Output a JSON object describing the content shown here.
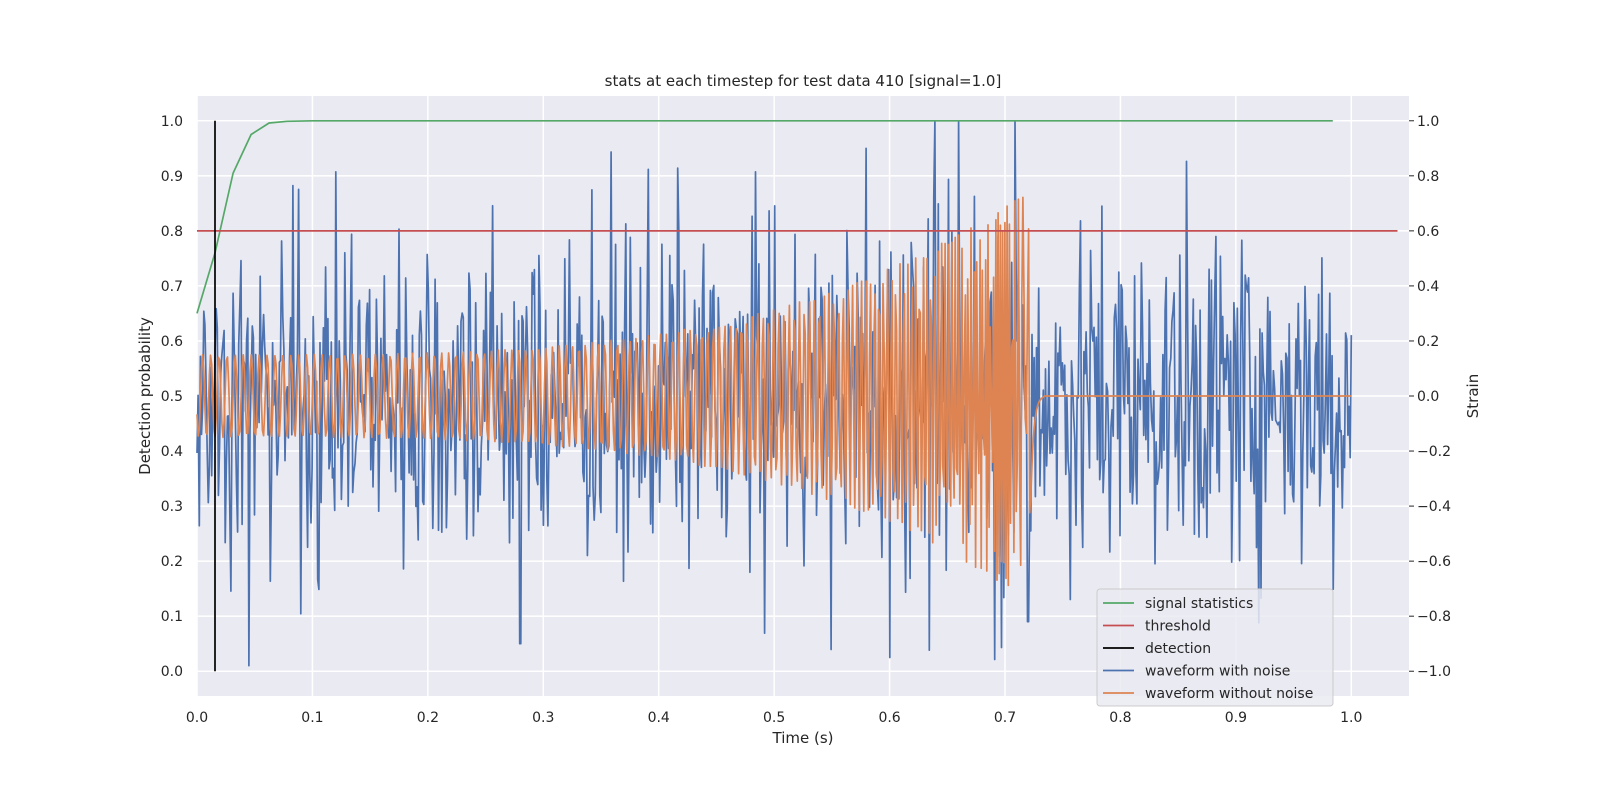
{
  "chart_data": {
    "type": "line",
    "title": "stats at each timestep for test data 410 [signal=1.0]",
    "xlabel": "Time (s)",
    "ylabel": "Detection probability",
    "y2label": "Strain",
    "xlim": [
      0.0,
      1.05
    ],
    "ylim": [
      -0.045,
      1.045
    ],
    "y2lim": [
      -1.09,
      1.09
    ],
    "xticks": [
      "0.0",
      "0.1",
      "0.2",
      "0.3",
      "0.4",
      "0.5",
      "0.6",
      "0.7",
      "0.8",
      "0.9",
      "1.0"
    ],
    "yticks": [
      "0.0",
      "0.1",
      "0.2",
      "0.3",
      "0.4",
      "0.5",
      "0.6",
      "0.7",
      "0.8",
      "0.9",
      "1.0"
    ],
    "y2ticks": [
      "−1.0",
      "−0.8",
      "−0.6",
      "−0.4",
      "−0.2",
      "0.0",
      "0.2",
      "0.4",
      "0.6",
      "0.8",
      "1.0"
    ],
    "grid": true,
    "legend_position": "lower-right",
    "colors": {
      "background": "#eaeaf2",
      "grid": "#ffffff",
      "signal_statistics": "#55a868",
      "threshold": "#c44e52",
      "detection": "#000000",
      "waveform_with_noise": "#4c72b0",
      "waveform_without_noise": "#dd8452"
    },
    "series": [
      {
        "name": "signal statistics",
        "axis": "left",
        "x": [
          0.0,
          0.0156,
          0.03125,
          0.0469,
          0.0625,
          0.0781,
          0.1,
          0.2,
          0.3,
          0.4,
          0.5,
          0.6,
          0.7,
          0.8,
          0.9,
          0.984
        ],
        "values": [
          0.65,
          0.76,
          0.905,
          0.975,
          0.996,
          0.999,
          1.0,
          1.0,
          1.0,
          1.0,
          1.0,
          1.0,
          1.0,
          1.0,
          1.0,
          1.0
        ]
      },
      {
        "name": "threshold",
        "axis": "left",
        "x": [
          0.0,
          1.04
        ],
        "values": [
          0.8,
          0.8
        ]
      },
      {
        "name": "detection",
        "axis": "left",
        "x": [
          0.0156,
          0.0156
        ],
        "values": [
          0.0,
          1.0
        ]
      },
      {
        "name": "waveform with noise",
        "axis": "right",
        "description_samples": 1024,
        "x_range": [
          0.0,
          1.0
        ],
        "amplitude_std": 0.3,
        "peaks": [
          {
            "x": 0.045,
            "value": -0.98
          },
          {
            "x": 0.28,
            "value": -0.9
          },
          {
            "x": 0.58,
            "value": 0.9
          },
          {
            "x": 0.6,
            "value": -0.95
          },
          {
            "x": 0.66,
            "value": 1.0
          },
          {
            "x": 0.72,
            "value": -0.82
          }
        ]
      },
      {
        "name": "waveform without noise",
        "axis": "right",
        "x_range": [
          0.0,
          1.0
        ],
        "merger_time": 0.722,
        "amplitude_start": 0.15,
        "amplitude_peak": 0.75,
        "post_merger_value": 0.0
      }
    ]
  }
}
